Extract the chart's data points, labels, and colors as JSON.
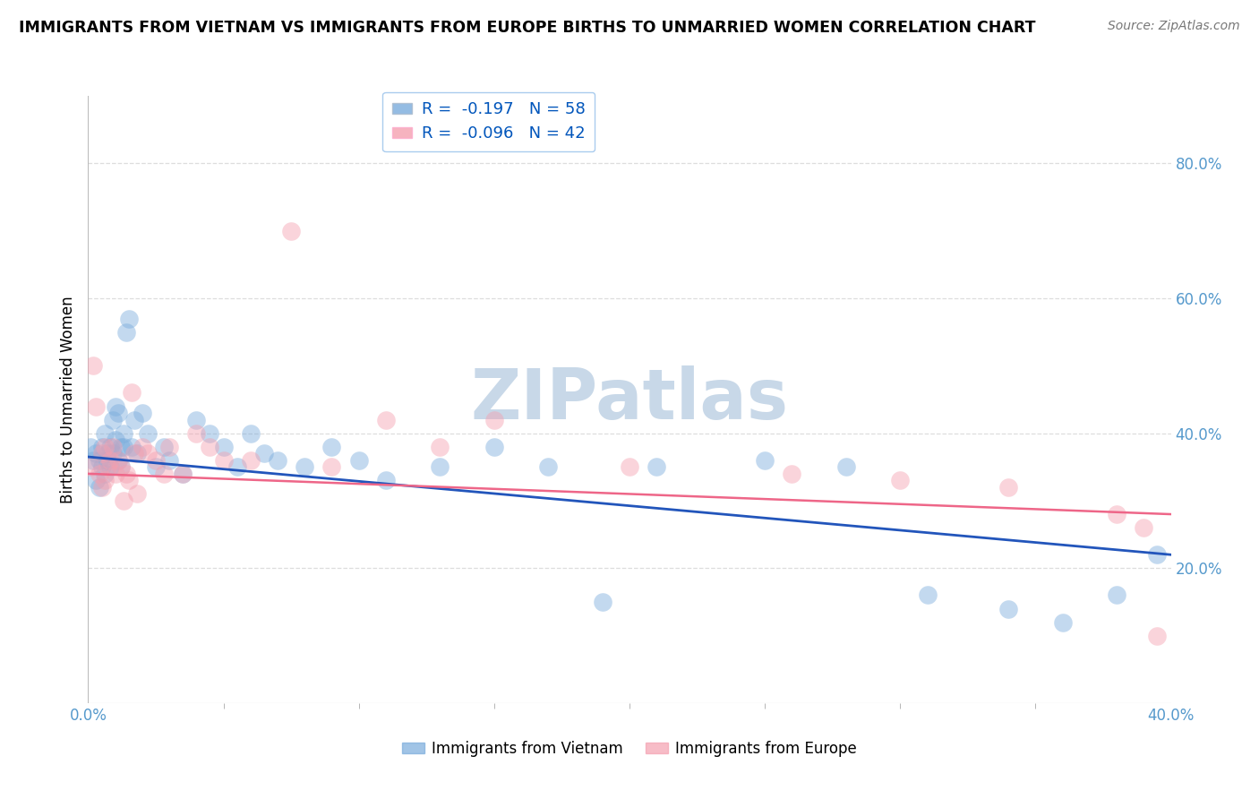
{
  "title": "IMMIGRANTS FROM VIETNAM VS IMMIGRANTS FROM EUROPE BIRTHS TO UNMARRIED WOMEN CORRELATION CHART",
  "source": "Source: ZipAtlas.com",
  "ylabel": "Births to Unmarried Women",
  "legend_blue_label": "Immigrants from Vietnam",
  "legend_pink_label": "Immigrants from Europe",
  "r_blue": "-0.197",
  "n_blue": "58",
  "r_pink": "-0.096",
  "n_pink": "42",
  "xlim": [
    0.0,
    0.4
  ],
  "ylim": [
    0.0,
    0.9
  ],
  "blue_color": "#7AACDC",
  "pink_color": "#F4A0B0",
  "blue_line_color": "#2255BB",
  "pink_line_color": "#EE6688",
  "watermark_color": "#C8D8E8",
  "grid_color": "#DDDDDD",
  "tick_color": "#5599CC",
  "vietnam_x": [
    0.001,
    0.002,
    0.003,
    0.003,
    0.004,
    0.004,
    0.005,
    0.005,
    0.006,
    0.006,
    0.007,
    0.007,
    0.008,
    0.008,
    0.009,
    0.009,
    0.01,
    0.01,
    0.011,
    0.011,
    0.012,
    0.012,
    0.013,
    0.013,
    0.014,
    0.015,
    0.016,
    0.017,
    0.018,
    0.02,
    0.022,
    0.025,
    0.028,
    0.03,
    0.035,
    0.04,
    0.045,
    0.05,
    0.055,
    0.06,
    0.065,
    0.07,
    0.08,
    0.09,
    0.1,
    0.11,
    0.13,
    0.15,
    0.17,
    0.19,
    0.21,
    0.25,
    0.28,
    0.31,
    0.34,
    0.36,
    0.38,
    0.395
  ],
  "vietnam_y": [
    0.38,
    0.36,
    0.37,
    0.33,
    0.36,
    0.32,
    0.35,
    0.38,
    0.34,
    0.4,
    0.37,
    0.36,
    0.38,
    0.35,
    0.42,
    0.37,
    0.44,
    0.39,
    0.36,
    0.43,
    0.38,
    0.35,
    0.4,
    0.38,
    0.55,
    0.57,
    0.38,
    0.42,
    0.37,
    0.43,
    0.4,
    0.35,
    0.38,
    0.36,
    0.34,
    0.42,
    0.4,
    0.38,
    0.35,
    0.4,
    0.37,
    0.36,
    0.35,
    0.38,
    0.36,
    0.33,
    0.35,
    0.38,
    0.35,
    0.15,
    0.35,
    0.36,
    0.35,
    0.16,
    0.14,
    0.12,
    0.16,
    0.22
  ],
  "europe_x": [
    0.001,
    0.002,
    0.003,
    0.004,
    0.005,
    0.005,
    0.006,
    0.006,
    0.007,
    0.008,
    0.009,
    0.01,
    0.011,
    0.012,
    0.013,
    0.014,
    0.015,
    0.016,
    0.017,
    0.018,
    0.02,
    0.022,
    0.025,
    0.028,
    0.03,
    0.035,
    0.04,
    0.045,
    0.05,
    0.06,
    0.075,
    0.09,
    0.11,
    0.13,
    0.15,
    0.2,
    0.26,
    0.3,
    0.34,
    0.38,
    0.39,
    0.395
  ],
  "europe_y": [
    0.35,
    0.5,
    0.44,
    0.34,
    0.32,
    0.37,
    0.33,
    0.38,
    0.35,
    0.36,
    0.38,
    0.34,
    0.36,
    0.35,
    0.3,
    0.34,
    0.33,
    0.46,
    0.37,
    0.31,
    0.38,
    0.37,
    0.36,
    0.34,
    0.38,
    0.34,
    0.4,
    0.38,
    0.36,
    0.36,
    0.7,
    0.35,
    0.42,
    0.38,
    0.42,
    0.35,
    0.34,
    0.33,
    0.32,
    0.28,
    0.26,
    0.1
  ]
}
